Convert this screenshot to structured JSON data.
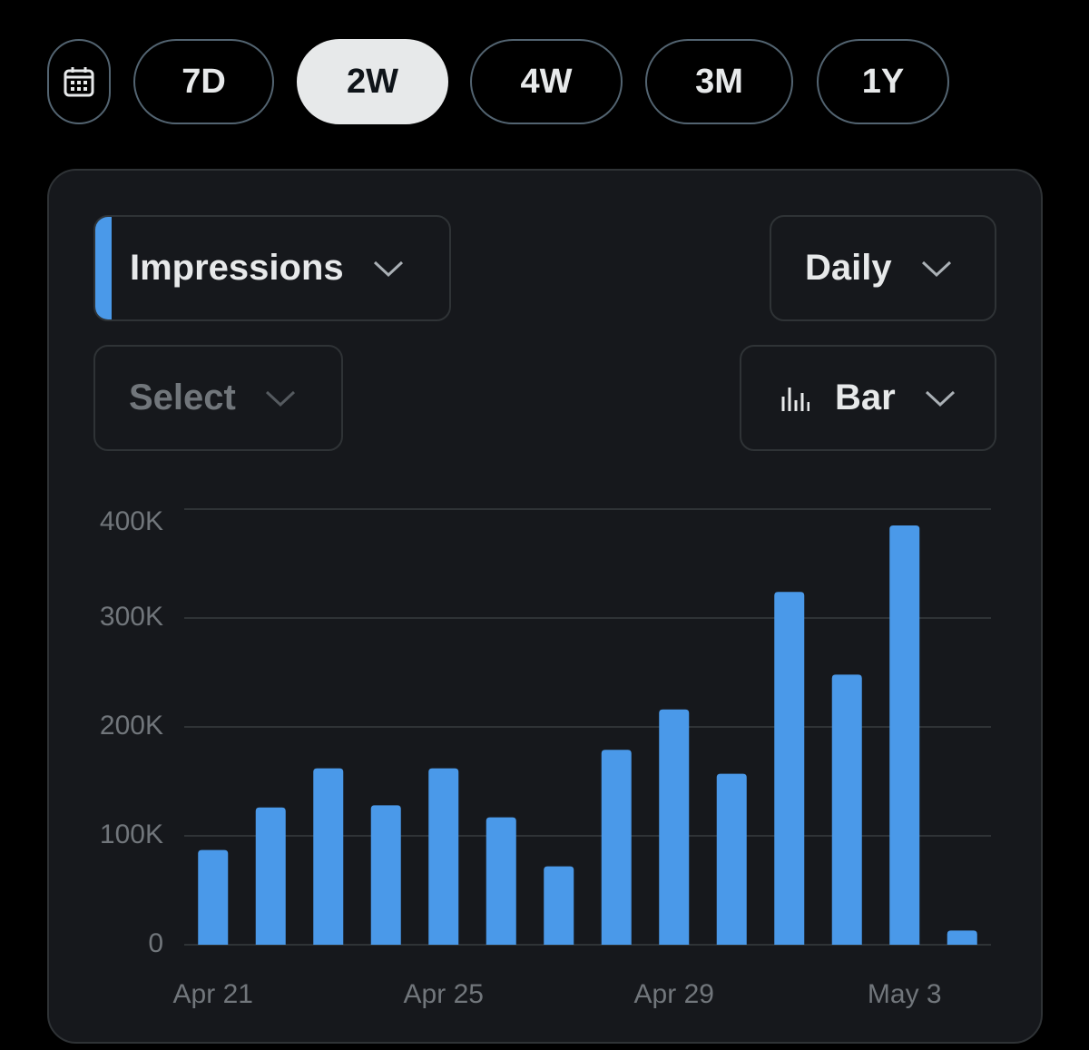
{
  "range_tabs": [
    "7D",
    "2W",
    "4W",
    "3M",
    "1Y"
  ],
  "controls": {
    "metric": "Impressions",
    "interval": "Daily",
    "compare": "Select",
    "chart_style": "Bar"
  },
  "chart_data": {
    "type": "bar",
    "categories": [
      "Apr 21",
      null,
      null,
      null,
      "Apr 25",
      null,
      null,
      null,
      "Apr 29",
      null,
      null,
      null,
      "May 3",
      null
    ],
    "values": [
      87000,
      126000,
      162000,
      128000,
      162000,
      117000,
      72000,
      179000,
      216000,
      157000,
      324000,
      248000,
      385000,
      13000
    ],
    "color": "#4a99e9",
    "ylim": [
      0,
      400000
    ],
    "yticks": [
      0,
      {
        "value": 100000,
        "label": "100K"
      },
      {
        "value": 200000,
        "label": "200K"
      },
      {
        "value": 300000,
        "label": "300K"
      },
      {
        "value": 400000,
        "label": "400K"
      }
    ],
    "grid": true
  }
}
